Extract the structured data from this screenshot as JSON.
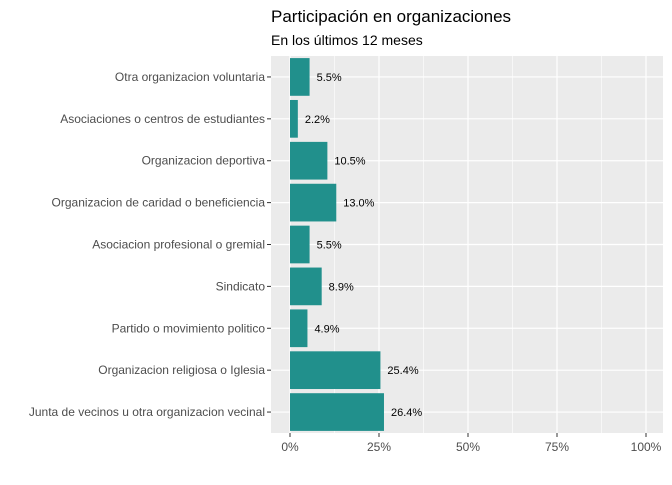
{
  "chart_data": {
    "type": "bar",
    "orientation": "horizontal",
    "title": "Participación en organizaciones",
    "subtitle": "En los últimos 12 meses",
    "xlabel": "",
    "ylabel": "",
    "categories": [
      "Otra organizacion voluntaria",
      "Asociaciones o centros de estudiantes",
      "Organizacion deportiva",
      "Organizacion de caridad o beneficiencia",
      "Asociacion profesional o gremial",
      "Sindicato",
      "Partido o movimiento politico",
      "Organizacion religiosa o Iglesia",
      "Junta de vecinos u otra organizacion vecinal"
    ],
    "values": [
      5.5,
      2.2,
      10.5,
      13.0,
      5.5,
      8.9,
      4.9,
      25.4,
      26.4
    ],
    "data_labels": [
      "5.5%",
      "2.2%",
      "10.5%",
      "13.0%",
      "5.5%",
      "8.9%",
      "4.9%",
      "25.4%",
      "26.4%"
    ],
    "xlim": [
      0,
      100
    ],
    "x_ticks": [
      0,
      25,
      50,
      75,
      100
    ],
    "x_tick_labels": [
      "0%",
      "25%",
      "50%",
      "75%",
      "100%"
    ],
    "bar_color": "#21908C",
    "panel_background": "#EBEBEB",
    "grid_color": "#FFFFFF",
    "grid": true,
    "legend": "none"
  }
}
